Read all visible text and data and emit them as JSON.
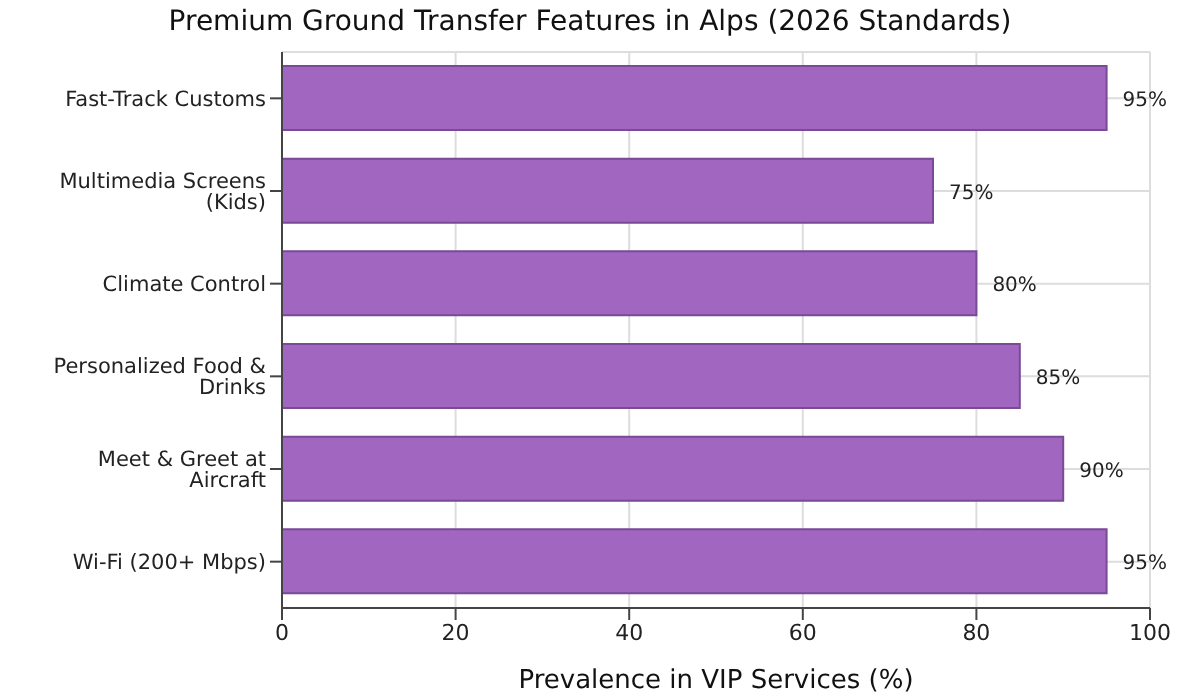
{
  "chart_data": {
    "type": "bar",
    "orientation": "horizontal",
    "title": "Premium Ground Transfer Features in Alps (2026 Standards)",
    "xlabel": "Prevalence in VIP Services (%)",
    "categories": [
      "Fast-Track Customs",
      "Multimedia Screens (Kids)",
      "Climate Control",
      "Personalized Food & Drinks",
      "Meet & Greet at Aircraft",
      "Wi-Fi (200+ Mbps)"
    ],
    "values": [
      95,
      75,
      80,
      85,
      90,
      95
    ],
    "value_labels": [
      "95%",
      "75%",
      "80%",
      "85%",
      "90%",
      "95%"
    ],
    "color": "#a066c0",
    "xlim": [
      0,
      100
    ],
    "xticks": [
      0,
      20,
      40,
      60,
      80,
      100
    ],
    "grid": true
  }
}
